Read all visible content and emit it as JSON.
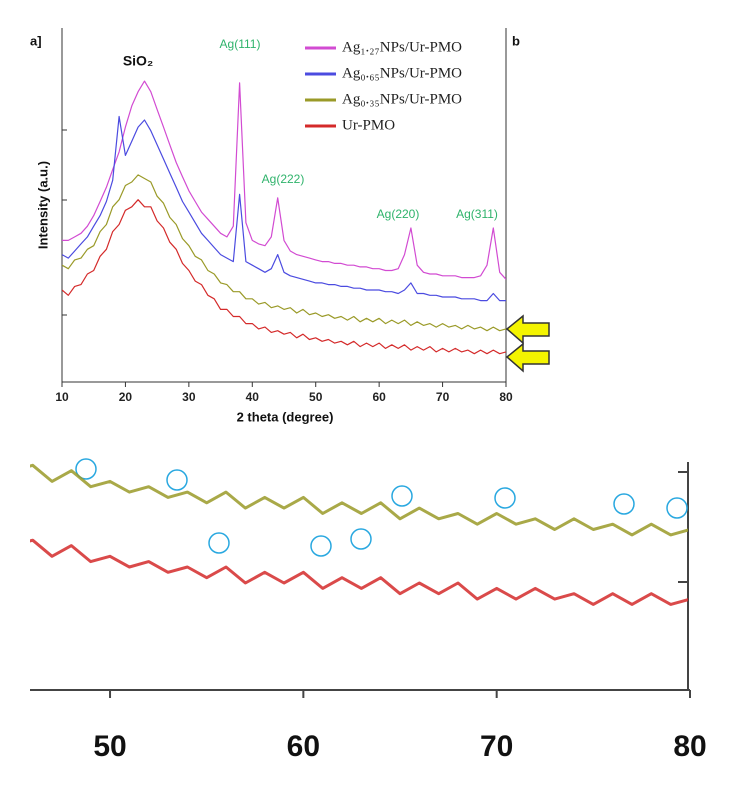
{
  "chart_data": [
    {
      "type": "line",
      "panel_labels": [
        "a]",
        "b"
      ],
      "x_label": "2 theta (degree)",
      "y_label": "Intensity (a.u.)",
      "annotations": [
        "SiO₂",
        "Ag(111)",
        "Ag(222)",
        "Ag(220)",
        "Ag(311)"
      ],
      "xlim": [
        10,
        80
      ],
      "ylim": [
        0,
        100
      ],
      "xticks": [
        10,
        20,
        30,
        40,
        50,
        60,
        70,
        80
      ],
      "legend": "upper right",
      "x": [
        10,
        11,
        12,
        13,
        14,
        15,
        16,
        17,
        18,
        19,
        20,
        21,
        22,
        23,
        24,
        25,
        26,
        27,
        28,
        29,
        30,
        31,
        32,
        33,
        34,
        35,
        36,
        37,
        38,
        39,
        40,
        41,
        42,
        43,
        44,
        45,
        46,
        47,
        48,
        49,
        50,
        51,
        52,
        53,
        54,
        55,
        56,
        57,
        58,
        59,
        60,
        61,
        62,
        63,
        64,
        65,
        66,
        67,
        68,
        69,
        70,
        71,
        72,
        73,
        74,
        75,
        76,
        77,
        78,
        79,
        80
      ],
      "series": [
        {
          "name": "Ag₁.₂₇NPs/Ur-PMO",
          "color": "#d24bd2",
          "values": [
            40,
            40,
            41,
            42,
            44,
            47,
            51,
            55,
            60,
            65,
            72,
            78,
            82,
            85,
            82,
            77,
            72,
            67,
            62,
            58,
            54,
            51,
            48,
            46,
            44,
            42,
            41,
            44,
            84.5,
            45,
            40,
            39,
            38.5,
            41,
            52,
            40,
            37,
            36,
            35.5,
            35,
            34.5,
            34,
            34,
            33.5,
            33.5,
            33,
            33,
            32.5,
            32.5,
            32,
            32,
            31.5,
            31.5,
            32,
            36,
            43.5,
            33,
            31,
            30.5,
            30.5,
            30,
            30,
            30,
            29.5,
            29.5,
            29.5,
            30,
            33,
            43.5,
            31,
            29
          ]
        },
        {
          "name": "Ag₀.₆₅NPs/Ur-PMO",
          "color": "#4b4be0",
          "values": [
            36,
            35,
            37,
            39,
            41,
            44,
            47,
            51,
            57,
            75,
            64,
            68,
            72,
            74,
            71,
            67,
            63,
            59,
            55,
            51,
            48,
            45,
            42,
            40,
            38,
            36,
            35,
            34,
            53,
            34,
            33,
            32,
            31,
            32,
            36,
            31,
            30,
            29.5,
            29,
            28.5,
            28,
            28,
            27.5,
            27.5,
            27,
            27,
            26.5,
            26.5,
            26,
            26,
            26,
            25.5,
            25.5,
            25,
            26,
            28,
            25,
            25,
            24.5,
            24.5,
            24,
            24,
            24,
            23.5,
            23.5,
            23.5,
            23,
            23,
            25,
            23,
            23
          ]
        },
        {
          "name": "Ag₀.₃₅NPs/Ur-PMO",
          "color": "#9a9a28",
          "values": [
            33,
            32,
            34.5,
            35,
            37.5,
            38.5,
            42.5,
            44.5,
            49.5,
            51.5,
            55.5,
            56.5,
            58.5,
            57.5,
            56.5,
            52.5,
            50.5,
            46.5,
            44.5,
            40.5,
            38.5,
            35.5,
            34.5,
            31.5,
            30.5,
            28,
            27.5,
            25.5,
            25.5,
            23.5,
            23.5,
            22,
            22.5,
            21,
            21.5,
            20.5,
            21,
            19.5,
            20.5,
            19,
            19.5,
            18.5,
            19,
            18,
            18.5,
            17.5,
            18.5,
            17,
            18,
            17,
            18,
            16.5,
            17.5,
            16.5,
            17.5,
            16,
            17,
            16,
            16.5,
            15.5,
            16.5,
            15.5,
            16,
            15,
            16,
            15,
            15.5,
            14.5,
            15.5,
            14.5,
            15
          ]
        },
        {
          "name": "Ur-PMO",
          "color": "#d42a2a",
          "values": [
            26,
            24.5,
            27,
            27.5,
            30.5,
            31.5,
            35.5,
            37.5,
            42.5,
            44.5,
            48.5,
            49.5,
            51.5,
            49.5,
            49.5,
            45.5,
            43.5,
            39.5,
            37.5,
            33.5,
            31.5,
            28.5,
            27.5,
            24.5,
            23.5,
            20.5,
            20.5,
            18.5,
            18.5,
            16.5,
            16.5,
            15,
            15.5,
            14,
            14.5,
            13.5,
            14,
            12.5,
            13.5,
            12,
            12.5,
            11.5,
            12,
            11,
            11.5,
            10.5,
            11.5,
            10,
            11,
            10,
            11,
            9.5,
            10.5,
            9.5,
            10.5,
            9,
            10,
            9,
            10,
            8.5,
            9.5,
            8.5,
            9.5,
            8.5,
            9,
            8,
            9,
            8,
            9,
            8,
            8.5
          ]
        }
      ]
    },
    {
      "type": "zoom",
      "xlim": [
        45.86,
        80
      ],
      "ylim": [
        0,
        21.5
      ],
      "xticks": [
        50,
        60,
        70,
        80
      ]
    }
  ]
}
